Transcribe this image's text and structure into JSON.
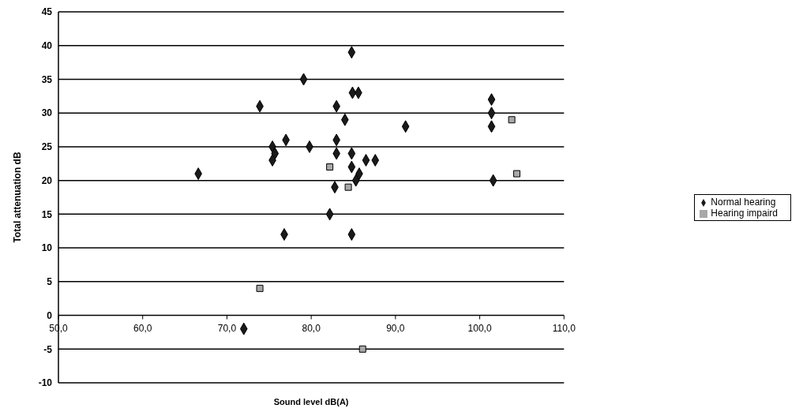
{
  "chart_data": {
    "type": "scatter",
    "xlabel": "Sound level dB(A)",
    "ylabel": "Total attenuation dB",
    "xlim": [
      50,
      110
    ],
    "xticks": [
      {
        "value": 50,
        "label": "50,0"
      },
      {
        "value": 60,
        "label": "60,0"
      },
      {
        "value": 70,
        "label": "70,0"
      },
      {
        "value": 80,
        "label": "80,0"
      },
      {
        "value": 90,
        "label": "90,0"
      },
      {
        "value": 100,
        "label": "100,0"
      },
      {
        "value": 110,
        "label": "110,0"
      }
    ],
    "ylim": [
      -10,
      45
    ],
    "yticks": [
      -10,
      -5,
      0,
      5,
      10,
      15,
      20,
      25,
      30,
      35,
      40,
      45
    ],
    "grid": "y",
    "legend": "right",
    "series": [
      {
        "name": "Normal hearing",
        "color": "#1a1a1a",
        "marker": "diamond",
        "x": [
          66.6,
          84.8,
          79.1,
          84.9,
          85.6,
          73.9,
          83.0,
          84.0,
          91.2,
          77.0,
          75.4,
          75.7,
          75.4,
          79.8,
          83.0,
          83.0,
          84.8,
          84.8,
          86.5,
          87.6,
          85.7,
          85.3,
          82.8,
          82.2,
          76.8,
          84.8,
          72.0,
          101.4,
          101.4,
          101.4,
          101.6
        ],
        "values": [
          21,
          39,
          35,
          33,
          33,
          31,
          31,
          29,
          28,
          26,
          25,
          24,
          23,
          25,
          26,
          24,
          24,
          22,
          23,
          23,
          21,
          20,
          19,
          15,
          12,
          12,
          -2,
          32,
          30,
          28,
          20
        ]
      },
      {
        "name": "Hearing impaird",
        "color": "#a8a8a8",
        "marker": "square",
        "x": [
          82.2,
          84.4,
          73.9,
          86.1,
          103.8,
          104.4
        ],
        "values": [
          22,
          19,
          4,
          -5,
          29,
          21
        ]
      }
    ]
  }
}
